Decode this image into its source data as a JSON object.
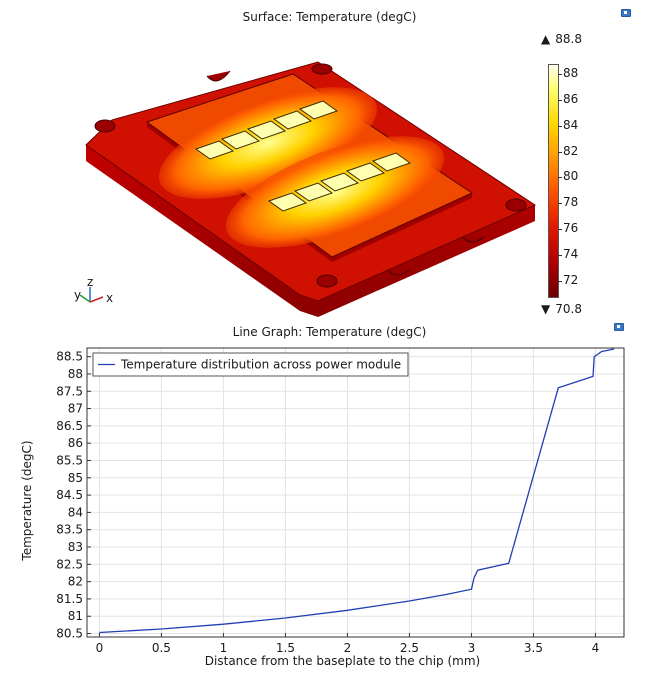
{
  "surface": {
    "title": "Surface: Temperature (degC)",
    "colorbar": {
      "max_label": "88.8",
      "min_label": "70.8",
      "ticks": [
        "88",
        "86",
        "84",
        "82",
        "80",
        "78",
        "76",
        "74",
        "72"
      ],
      "tick_values": [
        88,
        86,
        84,
        82,
        80,
        78,
        76,
        74,
        72
      ],
      "range": [
        70.8,
        88.8
      ]
    },
    "axes_triad": {
      "x": "x",
      "y": "y",
      "z": "z"
    },
    "colors": {
      "hot": "#ffffb0",
      "mid": "#ffd000",
      "warm": "#ff5a00",
      "base": "#c80000",
      "dark": "#7a0000"
    }
  },
  "chart_data": {
    "type": "line",
    "title": "Line Graph: Temperature (degC)",
    "xlabel": "Distance from the baseplate to the chip (mm)",
    "ylabel": "Temperature (degC)",
    "xlim": [
      -0.1,
      4.23
    ],
    "ylim": [
      80.4,
      88.75
    ],
    "xticks": [
      0,
      0.5,
      1,
      1.5,
      2,
      2.5,
      3,
      3.5,
      4
    ],
    "xtick_labels": [
      "0",
      "0.5",
      "1",
      "1.5",
      "2",
      "2.5",
      "3",
      "3.5",
      "4"
    ],
    "yticks": [
      80.5,
      81,
      81.5,
      82,
      82.5,
      83,
      83.5,
      84,
      84.5,
      85,
      85.5,
      86,
      86.5,
      87,
      87.5,
      88,
      88.5
    ],
    "ytick_labels": [
      "80.5",
      "81",
      "81.5",
      "82",
      "82.5",
      "83",
      "83.5",
      "84",
      "84.5",
      "85",
      "85.5",
      "86",
      "86.5",
      "87",
      "87.5",
      "88",
      "88.5"
    ],
    "grid": true,
    "legend_position": "top-left",
    "series": [
      {
        "name": "Temperature distribution across power module",
        "color": "#1f3fb4",
        "x": [
          0,
          0.5,
          1,
          1.5,
          2,
          2.5,
          2.8,
          3.0,
          3.02,
          3.05,
          3.3,
          3.7,
          3.98,
          3.99,
          4.05,
          4.15
        ],
        "y": [
          80.53,
          80.63,
          80.77,
          80.95,
          81.17,
          81.44,
          81.63,
          81.78,
          82.1,
          82.33,
          82.53,
          87.6,
          87.93,
          88.5,
          88.65,
          88.72
        ]
      }
    ]
  }
}
